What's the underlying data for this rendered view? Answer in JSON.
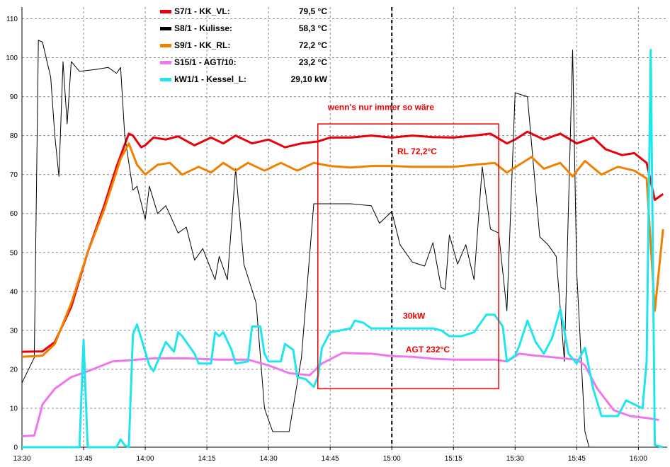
{
  "chart_data": {
    "type": "line",
    "x_ticks": [
      "13:30",
      "13:45",
      "14:00",
      "14:15",
      "14:30",
      "14:45",
      "15:00",
      "15:15",
      "15:30",
      "15:45",
      "16:00"
    ],
    "y_ticks": [
      "0",
      "10",
      "20",
      "30",
      "40",
      "50",
      "60",
      "70",
      "80",
      "90",
      "100",
      "110"
    ],
    "xlim": [
      "13:30",
      "16:07"
    ],
    "ylim": [
      0,
      113
    ],
    "grid": true,
    "legend_position": "top-center",
    "series": [
      {
        "name": "S7/1 - KK_VL:",
        "value": "79,5 °C",
        "color": "#e8000a",
        "points": [
          [
            "13:30",
            24.5
          ],
          [
            "13:35",
            24.6
          ],
          [
            "13:38",
            27
          ],
          [
            "13:42",
            36
          ],
          [
            "13:46",
            50
          ],
          [
            "13:50",
            62
          ],
          [
            "13:53",
            72
          ],
          [
            "13:56",
            80.5
          ],
          [
            "13:57",
            80
          ],
          [
            "13:59",
            77
          ],
          [
            "14:00",
            77.5
          ],
          [
            "14:02",
            79.5
          ],
          [
            "14:05",
            79
          ],
          [
            "14:08",
            79.8
          ],
          [
            "14:12",
            77.5
          ],
          [
            "14:16",
            79.5
          ],
          [
            "14:19",
            78
          ],
          [
            "14:22",
            80
          ],
          [
            "14:26",
            78
          ],
          [
            "14:30",
            79
          ],
          [
            "14:34",
            77
          ],
          [
            "14:38",
            78
          ],
          [
            "14:42",
            78.5
          ],
          [
            "14:45",
            79.5
          ],
          [
            "14:50",
            79.5
          ],
          [
            "14:55",
            80
          ],
          [
            "15:00",
            79.5
          ],
          [
            "15:05",
            80
          ],
          [
            "15:10",
            79.6
          ],
          [
            "15:15",
            79.5
          ],
          [
            "15:20",
            80
          ],
          [
            "15:24",
            80.5
          ],
          [
            "15:28",
            78
          ],
          [
            "15:30",
            79
          ],
          [
            "15:33",
            81
          ],
          [
            "15:37",
            79
          ],
          [
            "15:41",
            80.5
          ],
          [
            "15:45",
            78
          ],
          [
            "15:49",
            79.5
          ],
          [
            "15:52",
            76.5
          ],
          [
            "15:56",
            75
          ],
          [
            "15:59",
            75.5
          ],
          [
            "16:02",
            73
          ],
          [
            "16:04",
            63.5
          ],
          [
            "16:06",
            65
          ]
        ]
      },
      {
        "name": "S8/1 - Kulisse:",
        "value": "58,3 °C",
        "color": "#000000",
        "points": [
          [
            "13:30",
            16.5
          ],
          [
            "13:33",
            23
          ],
          [
            "13:34",
            104.5
          ],
          [
            "13:35",
            104
          ],
          [
            "13:37",
            95
          ],
          [
            "13:38",
            80
          ],
          [
            "13:39",
            69.5
          ],
          [
            "13:40",
            99
          ],
          [
            "13:41",
            83
          ],
          [
            "13:42",
            99
          ],
          [
            "13:44",
            96.5
          ],
          [
            "13:48",
            97
          ],
          [
            "13:51",
            97.5
          ],
          [
            "13:53",
            96
          ],
          [
            "13:54",
            97.5
          ],
          [
            "13:55",
            80
          ],
          [
            "13:57",
            66
          ],
          [
            "13:58",
            67
          ],
          [
            "14:00",
            58.5
          ],
          [
            "14:01",
            67
          ],
          [
            "14:03",
            60
          ],
          [
            "14:05",
            62
          ],
          [
            "14:08",
            55
          ],
          [
            "14:10",
            56.5
          ],
          [
            "14:12",
            48
          ],
          [
            "14:14",
            51
          ],
          [
            "14:17",
            43
          ],
          [
            "14:18",
            49
          ],
          [
            "14:20",
            43
          ],
          [
            "14:22",
            71.5
          ],
          [
            "14:24",
            47
          ],
          [
            "14:27",
            37
          ],
          [
            "14:29",
            10
          ],
          [
            "14:31",
            4
          ],
          [
            "14:35",
            4
          ],
          [
            "14:38",
            23
          ],
          [
            "14:41",
            62.5
          ],
          [
            "14:45",
            62.5
          ],
          [
            "14:50",
            62.5
          ],
          [
            "14:55",
            62
          ],
          [
            "14:57",
            57.5
          ],
          [
            "15:00",
            60.5
          ],
          [
            "15:02",
            52
          ],
          [
            "15:05",
            47.5
          ],
          [
            "15:08",
            46.5
          ],
          [
            "15:10",
            52.5
          ],
          [
            "15:12",
            41
          ],
          [
            "15:13",
            40.5
          ],
          [
            "15:14",
            54.5
          ],
          [
            "15:16",
            47
          ],
          [
            "15:18",
            52
          ],
          [
            "15:20",
            43
          ],
          [
            "15:22",
            72
          ],
          [
            "15:24",
            56
          ],
          [
            "15:26",
            55
          ],
          [
            "15:28",
            35
          ],
          [
            "15:30",
            91
          ],
          [
            "15:33",
            90
          ],
          [
            "15:36",
            54
          ],
          [
            "15:38",
            52
          ],
          [
            "15:40",
            49
          ],
          [
            "15:42",
            22
          ],
          [
            "15:44",
            102
          ],
          [
            "15:45",
            45
          ],
          [
            "15:47",
            4
          ],
          [
            "15:48",
            0
          ],
          [
            "16:00",
            0
          ],
          [
            "16:06",
            0
          ]
        ]
      },
      {
        "name": "S9/1 - KK_RL:",
        "value": "72,2 °C",
        "color": "#f08000",
        "points": [
          [
            "13:30",
            23.2
          ],
          [
            "13:35",
            23.5
          ],
          [
            "13:38",
            26.5
          ],
          [
            "13:42",
            37
          ],
          [
            "13:46",
            50
          ],
          [
            "13:50",
            61
          ],
          [
            "13:54",
            74
          ],
          [
            "13:56",
            78
          ],
          [
            "13:58",
            72.5
          ],
          [
            "14:00",
            70
          ],
          [
            "14:03",
            72.5
          ],
          [
            "14:06",
            73
          ],
          [
            "14:09",
            70
          ],
          [
            "14:13",
            72
          ],
          [
            "14:16",
            70.5
          ],
          [
            "14:19",
            73
          ],
          [
            "14:22",
            71
          ],
          [
            "14:25",
            73
          ],
          [
            "14:29",
            71
          ],
          [
            "14:33",
            73
          ],
          [
            "14:37",
            71
          ],
          [
            "14:41",
            73
          ],
          [
            "14:45",
            72.2
          ],
          [
            "14:50",
            71.8
          ],
          [
            "14:55",
            72.2
          ],
          [
            "15:00",
            72.2
          ],
          [
            "15:05",
            72
          ],
          [
            "15:10",
            72
          ],
          [
            "15:15",
            72
          ],
          [
            "15:20",
            72.5
          ],
          [
            "15:25",
            73
          ],
          [
            "15:28",
            70.5
          ],
          [
            "15:31",
            72.5
          ],
          [
            "15:34",
            74.5
          ],
          [
            "15:37",
            71.5
          ],
          [
            "15:41",
            73
          ],
          [
            "15:44",
            69.5
          ],
          [
            "15:47",
            73.5
          ],
          [
            "15:51",
            70
          ],
          [
            "15:55",
            72
          ],
          [
            "15:59",
            71
          ],
          [
            "16:02",
            69
          ],
          [
            "16:04",
            35
          ],
          [
            "16:06",
            56
          ]
        ]
      },
      {
        "name": "S15/1 - AGT/10:",
        "value": "23,2 °C",
        "color": "#ee77ee",
        "points": [
          [
            "13:30",
            2.8
          ],
          [
            "13:33",
            3
          ],
          [
            "13:35",
            11
          ],
          [
            "13:38",
            15
          ],
          [
            "13:42",
            18
          ],
          [
            "13:46",
            19.5
          ],
          [
            "13:52",
            22
          ],
          [
            "13:58",
            22.5
          ],
          [
            "14:02",
            22.8
          ],
          [
            "14:10",
            22.8
          ],
          [
            "14:18",
            22.5
          ],
          [
            "14:25",
            22.5
          ],
          [
            "14:30",
            21
          ],
          [
            "14:35",
            19
          ],
          [
            "14:40",
            18.5
          ],
          [
            "14:43",
            21.5
          ],
          [
            "14:48",
            24.2
          ],
          [
            "14:55",
            24
          ],
          [
            "15:00",
            23.4
          ],
          [
            "15:05",
            23.2
          ],
          [
            "15:10",
            22.7
          ],
          [
            "15:15",
            22.5
          ],
          [
            "15:20",
            22.5
          ],
          [
            "15:25",
            22.5
          ],
          [
            "15:28",
            22
          ],
          [
            "15:31",
            24
          ],
          [
            "15:35",
            23.5
          ],
          [
            "15:40",
            23
          ],
          [
            "15:45",
            22.5
          ],
          [
            "15:47",
            21
          ],
          [
            "15:50",
            15
          ],
          [
            "15:54",
            9.5
          ],
          [
            "15:58",
            8
          ],
          [
            "16:02",
            7.5
          ],
          [
            "16:05",
            7
          ]
        ]
      },
      {
        "name": "kW1/1 - Kessel_L:",
        "value": "29,10 kW",
        "color": "#1ee5ee",
        "points": [
          [
            "13:30",
            0
          ],
          [
            "13:43",
            0
          ],
          [
            "13:44",
            0
          ],
          [
            "13:45",
            27.5
          ],
          [
            "13:46",
            0
          ],
          [
            "13:53",
            0
          ],
          [
            "13:54",
            2
          ],
          [
            "13:55",
            0.5
          ],
          [
            "13:56",
            0
          ],
          [
            "13:57",
            29
          ],
          [
            "13:58",
            31.5
          ],
          [
            "13:59",
            28
          ],
          [
            "14:01",
            21
          ],
          [
            "14:02",
            19.5
          ],
          [
            "14:03",
            22
          ],
          [
            "14:05",
            27
          ],
          [
            "14:07",
            24.5
          ],
          [
            "14:08",
            29.5
          ],
          [
            "14:09",
            28.5
          ],
          [
            "14:10",
            27
          ],
          [
            "14:12",
            24
          ],
          [
            "14:13",
            21.5
          ],
          [
            "14:16",
            21.5
          ],
          [
            "14:17",
            29.5
          ],
          [
            "14:18",
            28.5
          ],
          [
            "14:19",
            29.5
          ],
          [
            "14:21",
            25
          ],
          [
            "14:22",
            21.5
          ],
          [
            "14:25",
            22
          ],
          [
            "14:26",
            31
          ],
          [
            "14:28",
            31
          ],
          [
            "14:29",
            24
          ],
          [
            "14:30",
            22
          ],
          [
            "14:33",
            22
          ],
          [
            "14:34",
            26.5
          ],
          [
            "14:36",
            25
          ],
          [
            "14:37",
            18
          ],
          [
            "14:39",
            17.5
          ],
          [
            "14:41",
            15.5
          ],
          [
            "14:42",
            18
          ],
          [
            "14:43",
            25.5
          ],
          [
            "14:45",
            29.5
          ],
          [
            "14:50",
            30.5
          ],
          [
            "14:51",
            32.5
          ],
          [
            "14:53",
            32
          ],
          [
            "14:55",
            30.5
          ],
          [
            "15:00",
            30.5
          ],
          [
            "15:05",
            30.5
          ],
          [
            "15:10",
            30.5
          ],
          [
            "15:12",
            30
          ],
          [
            "15:14",
            28.5
          ],
          [
            "15:17",
            28.5
          ],
          [
            "15:20",
            29.5
          ],
          [
            "15:23",
            34
          ],
          [
            "15:25",
            34
          ],
          [
            "15:27",
            31
          ],
          [
            "15:28",
            22
          ],
          [
            "15:30",
            23.5
          ],
          [
            "15:31",
            26
          ],
          [
            "15:33",
            32.5
          ],
          [
            "15:35",
            27
          ],
          [
            "15:37",
            24
          ],
          [
            "15:39",
            28
          ],
          [
            "15:41",
            35.5
          ],
          [
            "15:43",
            24
          ],
          [
            "15:45",
            21.5
          ],
          [
            "15:47",
            25.5
          ],
          [
            "15:49",
            15
          ],
          [
            "15:51",
            8
          ],
          [
            "15:55",
            8
          ],
          [
            "15:57",
            12
          ],
          [
            "16:01",
            10
          ],
          [
            "16:02",
            22
          ],
          [
            "16:03",
            102
          ],
          [
            "16:04",
            0.5
          ],
          [
            "16:06",
            0
          ]
        ]
      }
    ],
    "annotations": [
      {
        "text": "wenn's nur immer so wäre",
        "color": "#ee0000"
      },
      {
        "text": "RL 72,2°C",
        "color": "#ee0000"
      },
      {
        "text": "30kW",
        "color": "#ee0000"
      },
      {
        "text": "AGT 232°C",
        "color": "#ee0000"
      }
    ],
    "highlight_box": {
      "x_from": "14:42",
      "x_to": "15:26",
      "y_from": 15,
      "y_to": 83,
      "color": "#ee0000"
    },
    "marker_line": {
      "x": "15:00",
      "color": "#000000"
    }
  }
}
